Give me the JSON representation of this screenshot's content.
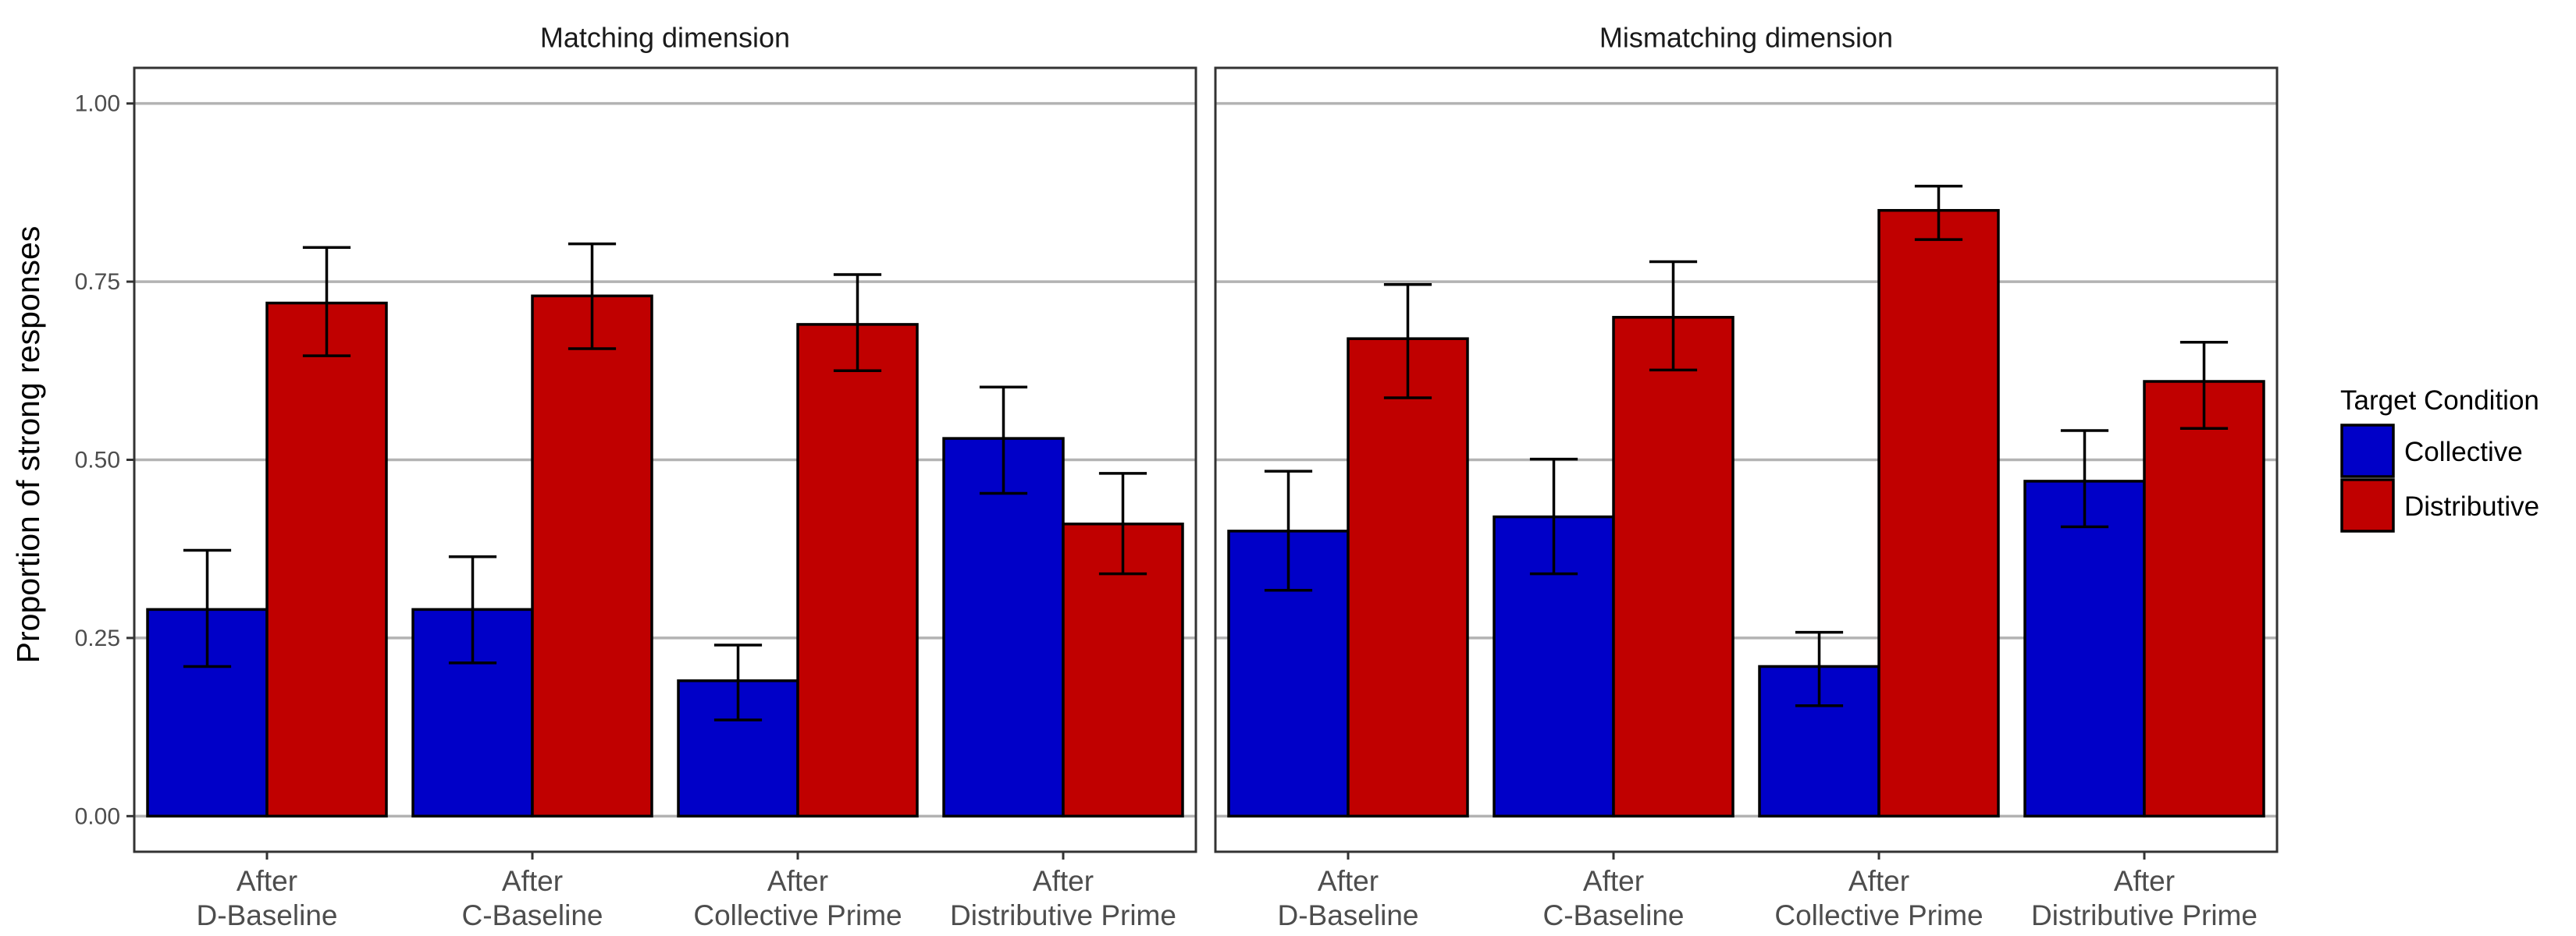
{
  "chart_data": {
    "type": "bar",
    "ylabel": "Proportion of strong responses",
    "xlabel": "",
    "ylim": [
      -0.05,
      1.05
    ],
    "yticks": [
      0.0,
      0.25,
      0.5,
      0.75,
      1.0
    ],
    "ytick_labels": [
      "0.00",
      "0.25",
      "0.50",
      "0.75",
      "1.00"
    ],
    "grid": true,
    "legend": {
      "title": "Target Condition",
      "position": "right",
      "entries": [
        "Collective",
        "Distributive"
      ]
    },
    "colors": {
      "Collective": "#0000c8",
      "Distributive": "#c00000"
    },
    "categories": [
      [
        "After",
        "D-Baseline"
      ],
      [
        "After",
        "C-Baseline"
      ],
      [
        "After",
        "Collective Prime"
      ],
      [
        "After",
        "Distributive Prime"
      ]
    ],
    "panels": [
      {
        "title": "Matching dimension",
        "series": [
          {
            "name": "Collective",
            "values": [
              0.29,
              0.29,
              0.19,
              0.53
            ],
            "err_low": [
              0.21,
              0.215,
              0.135,
              0.453
            ],
            "err_high": [
              0.373,
              0.364,
              0.24,
              0.602
            ]
          },
          {
            "name": "Distributive",
            "values": [
              0.72,
              0.73,
              0.69,
              0.41
            ],
            "err_low": [
              0.646,
              0.656,
              0.625,
              0.34
            ],
            "err_high": [
              0.798,
              0.803,
              0.76,
              0.481
            ]
          }
        ]
      },
      {
        "title": "Mismatching dimension",
        "series": [
          {
            "name": "Collective",
            "values": [
              0.4,
              0.42,
              0.21,
              0.47
            ],
            "err_low": [
              0.317,
              0.34,
              0.155,
              0.406
            ],
            "err_high": [
              0.484,
              0.501,
              0.258,
              0.541
            ]
          },
          {
            "name": "Distributive",
            "values": [
              0.67,
              0.7,
              0.85,
              0.61
            ],
            "err_low": [
              0.587,
              0.626,
              0.809,
              0.544
            ],
            "err_high": [
              0.746,
              0.778,
              0.884,
              0.665
            ]
          }
        ]
      }
    ]
  }
}
